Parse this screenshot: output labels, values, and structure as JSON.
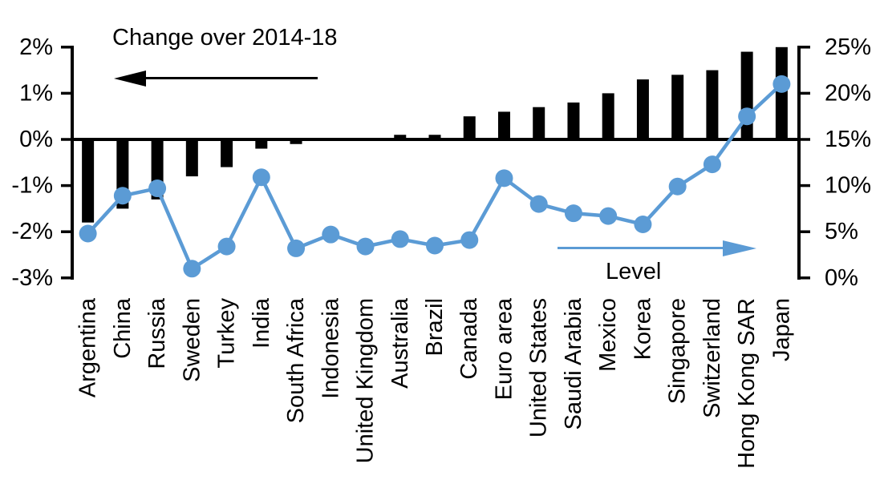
{
  "annotations": {
    "left_series_label": "Change over 2014-18",
    "right_series_label": "Level"
  },
  "colors": {
    "bar": "#000000",
    "line": "#5B9BD5",
    "axis": "#000000",
    "text": "#000000",
    "background": "#FFFFFF"
  },
  "chart_data": {
    "type": "bar",
    "subtype": "bar+line combo, dual axis",
    "title": "",
    "xlabel": "",
    "ylabel_left": "Change over 2014-18",
    "ylabel_right": "Level",
    "grid": false,
    "legend_position": "in-plot text annotations with directional arrows",
    "categories": [
      "Argentina",
      "China",
      "Russia",
      "Sweden",
      "Turkey",
      "India",
      "South Africa",
      "Indonesia",
      "United Kingdom",
      "Australia",
      "Brazil",
      "Canada",
      "Euro area",
      "United States",
      "Saudi Arabia",
      "Mexico",
      "Korea",
      "Singapore",
      "Switzerland",
      "Hong Kong SAR",
      "Japan"
    ],
    "series": [
      {
        "name": "Change over 2014-18",
        "type": "bar",
        "axis": "left",
        "color": "#000000",
        "values": [
          -1.8,
          -1.5,
          -1.3,
          -0.8,
          -0.6,
          -0.2,
          -0.1,
          0.0,
          0.0,
          0.1,
          0.1,
          0.5,
          0.6,
          0.7,
          0.8,
          1.0,
          1.3,
          1.4,
          1.5,
          1.9,
          2.0
        ]
      },
      {
        "name": "Level",
        "type": "line",
        "axis": "right",
        "color": "#5B9BD5",
        "values": [
          4.8,
          8.9,
          9.7,
          1.0,
          3.4,
          10.9,
          3.2,
          4.7,
          3.4,
          4.2,
          3.5,
          4.1,
          10.8,
          8.0,
          7.0,
          6.7,
          5.8,
          9.9,
          12.3,
          17.5,
          21.0
        ]
      }
    ],
    "left_axis": {
      "tick_labels": [
        "2%",
        "1%",
        "0%",
        "-1%",
        "-2%",
        "-3%"
      ],
      "tick_values": [
        2,
        1,
        0,
        -1,
        -2,
        -3
      ],
      "range": [
        -3,
        2
      ]
    },
    "right_axis": {
      "tick_labels": [
        "25%",
        "20%",
        "15%",
        "10%",
        "5%",
        "0%"
      ],
      "tick_values": [
        25,
        20,
        15,
        10,
        5,
        0
      ],
      "range": [
        0,
        25
      ]
    }
  }
}
